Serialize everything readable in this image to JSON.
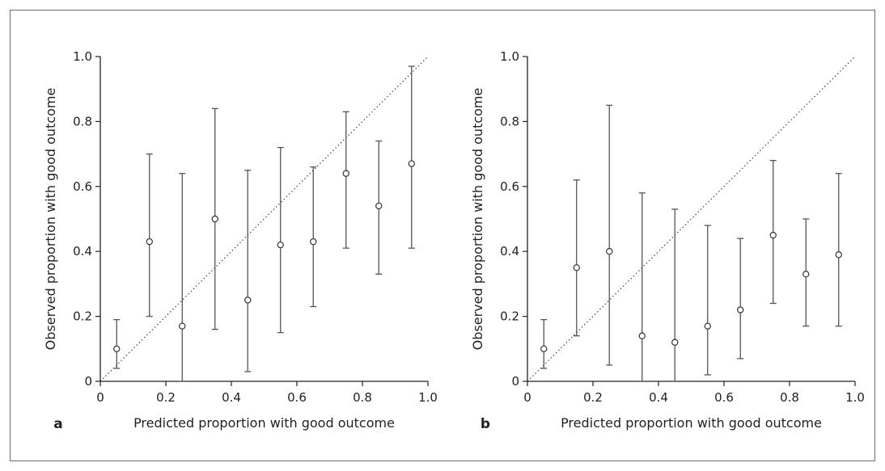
{
  "chart_data": [
    {
      "type": "scatter",
      "panel_label": "a",
      "xlabel": "Predicted proportion with good outcome",
      "ylabel": "Observed proportion with good outcome",
      "xlim": [
        0,
        1.0
      ],
      "ylim": [
        0,
        1.0
      ],
      "x_ticks": [
        "0",
        "0.2",
        "0.4",
        "0.6",
        "0.8",
        "1.0"
      ],
      "y_ticks": [
        "0",
        "0.2",
        "0.4",
        "0.6",
        "0.8",
        "1.0"
      ],
      "reference_line": "dotted diagonal y = x",
      "grid": false,
      "series": [
        {
          "x": [
            0.05,
            0.15,
            0.25,
            0.35,
            0.45,
            0.55,
            0.65,
            0.75,
            0.85,
            0.95
          ],
          "y": [
            0.1,
            0.43,
            0.17,
            0.5,
            0.25,
            0.42,
            0.43,
            0.64,
            0.54,
            0.67
          ],
          "lower": [
            0.04,
            0.2,
            0.0,
            0.16,
            0.03,
            0.15,
            0.23,
            0.41,
            0.33,
            0.41
          ],
          "upper": [
            0.19,
            0.7,
            0.64,
            0.84,
            0.65,
            0.72,
            0.66,
            0.83,
            0.74,
            0.97
          ]
        }
      ]
    },
    {
      "type": "scatter",
      "panel_label": "b",
      "xlabel": "Predicted proportion with good outcome",
      "ylabel": "Observed proportion with good outcome",
      "xlim": [
        0,
        1.0
      ],
      "ylim": [
        0,
        1.0
      ],
      "x_ticks": [
        "0",
        "0.2",
        "0.4",
        "0.6",
        "0.8",
        "1.0"
      ],
      "y_ticks": [
        "0",
        "0.2",
        "0.4",
        "0.6",
        "0.8",
        "1.0"
      ],
      "reference_line": "dotted diagonal y = x",
      "grid": false,
      "series": [
        {
          "x": [
            0.05,
            0.15,
            0.25,
            0.35,
            0.45,
            0.55,
            0.65,
            0.75,
            0.85,
            0.95
          ],
          "y": [
            0.1,
            0.35,
            0.4,
            0.14,
            0.12,
            0.17,
            0.22,
            0.45,
            0.33,
            0.39
          ],
          "lower": [
            0.04,
            0.14,
            0.05,
            0.0,
            0.0,
            0.02,
            0.07,
            0.24,
            0.17,
            0.17
          ],
          "upper": [
            0.19,
            0.62,
            0.85,
            0.58,
            0.53,
            0.48,
            0.44,
            0.68,
            0.5,
            0.64
          ]
        }
      ]
    }
  ]
}
